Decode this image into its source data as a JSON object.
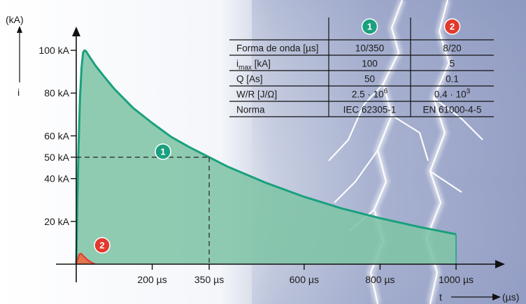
{
  "chart_data": {
    "type": "area",
    "y_unit_label": "(kA)",
    "y_symbol": "i",
    "x_symbol": "t",
    "x_unit_label": "(µs)",
    "ylim": [
      0,
      110
    ],
    "xlim": [
      0,
      1100
    ],
    "y_ticks": [
      {
        "value": 20,
        "label": "20 kA"
      },
      {
        "value": 40,
        "label": "40 kA"
      },
      {
        "value": 50,
        "label": "50 kA"
      },
      {
        "value": 60,
        "label": "60 kA"
      },
      {
        "value": 80,
        "label": "80 kA"
      },
      {
        "value": 100,
        "label": "100 kA"
      }
    ],
    "x_ticks": [
      {
        "value": 200,
        "label": "200 µs"
      },
      {
        "value": 350,
        "label": "350 µs"
      },
      {
        "value": 600,
        "label": "600 µs"
      },
      {
        "value": 800,
        "label": "800 µs"
      },
      {
        "value": 1000,
        "label": "1000 µs"
      }
    ],
    "series": [
      {
        "badge": "1",
        "color": "#1aa07e",
        "fill": "#7fc4a6",
        "x": [
          0,
          3,
          6,
          10,
          14,
          18,
          22,
          26,
          35,
          50,
          70,
          100,
          150,
          200,
          250,
          300,
          350,
          400,
          500,
          600,
          700,
          800,
          900,
          1000
        ],
        "y": [
          0,
          30,
          55,
          78,
          92,
          99,
          100,
          99.5,
          97,
          93,
          88.5,
          82,
          73,
          66,
          59.5,
          54.5,
          50,
          45.5,
          38,
          31.5,
          26,
          21.5,
          17.5,
          14
        ]
      },
      {
        "badge": "2",
        "color": "#e2392e",
        "fill": "#e8704a",
        "x": [
          0,
          4,
          8,
          12,
          16,
          20,
          30,
          40,
          50
        ],
        "y": [
          0,
          2.4,
          4.6,
          5,
          4.4,
          3.6,
          2,
          0.8,
          0
        ]
      }
    ],
    "annotation": {
      "x": 350,
      "y": 50
    }
  },
  "table": {
    "header_badges": [
      "1",
      "2"
    ],
    "header_colors": [
      "#1aa07e",
      "#e2392e"
    ],
    "rows": [
      {
        "label": "Forma de onda [µs]",
        "label_base": "",
        "label_sub": "",
        "label_tail": "",
        "v1": "10/350",
        "v1_base": "",
        "v1_exp": "",
        "v2": "8/20",
        "v2_base": "",
        "v2_exp": ""
      },
      {
        "label": "",
        "label_base": "i",
        "label_sub": "max",
        "label_tail": " [kA]",
        "v1": "100",
        "v1_base": "",
        "v1_exp": "",
        "v2": "5",
        "v2_base": "",
        "v2_exp": ""
      },
      {
        "label": "Q [As]",
        "label_base": "",
        "label_sub": "",
        "label_tail": "",
        "v1": "50",
        "v1_base": "",
        "v1_exp": "",
        "v2": "0.1",
        "v2_base": "",
        "v2_exp": ""
      },
      {
        "label": "W/R [J/Ω]",
        "label_base": "",
        "label_sub": "",
        "label_tail": "",
        "v1": "",
        "v1_base": "2.5 · 10",
        "v1_exp": "6",
        "v2": "",
        "v2_base": "0.4 · 10",
        "v2_exp": "3"
      },
      {
        "label": "Norma",
        "label_base": "",
        "label_sub": "",
        "label_tail": "",
        "v1": "IEC 62305-1",
        "v1_base": "",
        "v1_exp": "",
        "v2": "EN 61000-4-5",
        "v2_base": "",
        "v2_exp": ""
      }
    ]
  }
}
